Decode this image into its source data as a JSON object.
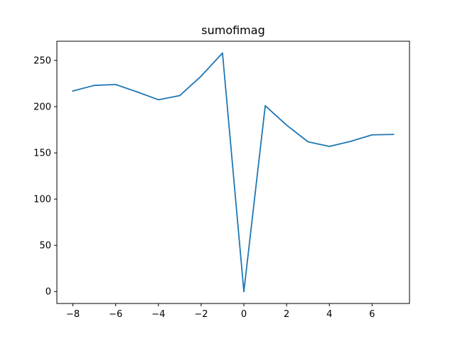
{
  "chart_data": {
    "type": "line",
    "title": "sumofimag",
    "xlabel": "",
    "ylabel": "",
    "xlim": [
      -8.75,
      7.75
    ],
    "ylim": [
      -12.9,
      270.8
    ],
    "xticks": [
      -8,
      -6,
      -4,
      -2,
      0,
      2,
      4,
      6
    ],
    "xtick_labels": [
      "−8",
      "−6",
      "−4",
      "−2",
      "0",
      "2",
      "4",
      "6"
    ],
    "yticks": [
      0,
      50,
      100,
      150,
      200,
      250
    ],
    "ytick_labels": [
      "0",
      "50",
      "100",
      "150",
      "200",
      "250"
    ],
    "grid": false,
    "legend": "none",
    "series": [
      {
        "color": "#1f77b4",
        "x": [
          -8,
          -7,
          -6,
          -5,
          -4,
          -3,
          -2,
          -1,
          0,
          1,
          2,
          3,
          4,
          5,
          6,
          7
        ],
        "y": [
          217,
          223,
          224,
          216,
          207.5,
          212,
          233,
          258,
          0,
          201,
          180,
          162,
          157,
          162.5,
          169.5,
          170
        ]
      }
    ]
  }
}
